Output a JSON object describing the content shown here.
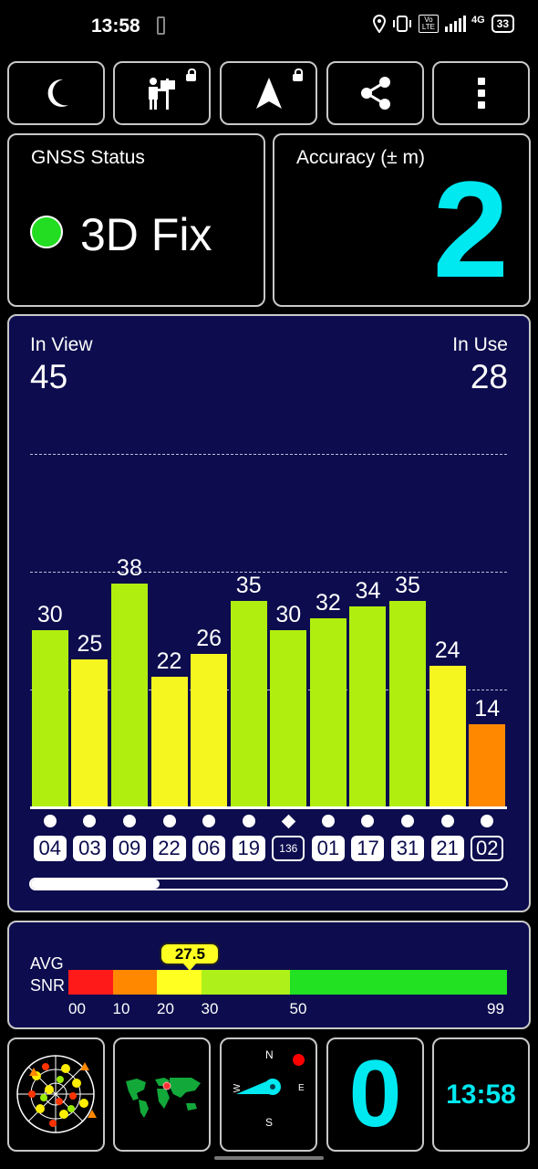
{
  "status_bar": {
    "time": "13:58",
    "icons": [
      "location-icon",
      "vibrate-icon",
      "volte-icon",
      "signal-icon",
      "4g-icon"
    ],
    "volte_label": "Vo LTE",
    "network_label": "4G",
    "battery_level": "33"
  },
  "toolbar": {
    "buttons": [
      "moon-icon",
      "sign-person-icon",
      "navigation-arrow-icon",
      "share-icon",
      "more-vert-icon"
    ]
  },
  "gnss_status": {
    "title": "GNSS Status",
    "value": "3D Fix",
    "indicator_color": "#22dd22"
  },
  "accuracy": {
    "title": "Accuracy (± m)",
    "value": "2",
    "value_color": "#00e8f0"
  },
  "satellites": {
    "in_view_label": "In View",
    "in_view": "45",
    "in_use_label": "In Use",
    "in_use": "28"
  },
  "chart_data": {
    "type": "bar",
    "categories": [
      "04",
      "03",
      "09",
      "22",
      "06",
      "19",
      "136",
      "01",
      "17",
      "31",
      "21",
      "02"
    ],
    "values": [
      30,
      25,
      38,
      22,
      26,
      35,
      30,
      32,
      34,
      35,
      24,
      14
    ],
    "value_labels": [
      "30",
      "25",
      "38",
      "22",
      "26",
      "35",
      "30",
      "32",
      "34",
      "35",
      "24",
      "14"
    ],
    "colors": [
      "#b0ee10",
      "#f5f520",
      "#b0ee10",
      "#f5f520",
      "#f5f520",
      "#b0ee10",
      "#b0ee10",
      "#b0ee10",
      "#b0ee10",
      "#b0ee10",
      "#f5f520",
      "#ff8800"
    ],
    "markers": [
      "dot",
      "dot",
      "dot",
      "dot",
      "dot",
      "dot",
      "diamond",
      "dot",
      "dot",
      "dot",
      "dot",
      "dot"
    ],
    "label_style": [
      "filled",
      "filled",
      "filled",
      "filled",
      "filled",
      "filled",
      "outline",
      "filled",
      "filled",
      "filled",
      "filled",
      "outline"
    ],
    "ylim": [
      0,
      60
    ],
    "grid": true
  },
  "scroll": {
    "position": 0.27
  },
  "avg_snr": {
    "label_line1": "AVG",
    "label_line2": "SNR",
    "value": "27.5",
    "value_numeric": 27.5,
    "scale_ticks": [
      "00",
      "10",
      "20",
      "30",
      "50",
      "99"
    ],
    "tick_values": [
      0,
      10,
      20,
      30,
      50,
      99
    ],
    "segments": [
      {
        "from": 0,
        "to": 10,
        "color": "#ff1a1a"
      },
      {
        "from": 10,
        "to": 20,
        "color": "#ff8800"
      },
      {
        "from": 20,
        "to": 30,
        "color": "#ffff22"
      },
      {
        "from": 30,
        "to": 50,
        "color": "#aef01a"
      },
      {
        "from": 50,
        "to": 99,
        "color": "#22e022"
      }
    ]
  },
  "bottom_tiles": {
    "sky_plot": "sky-plot-icon",
    "world_map": "world-map-icon",
    "compass": {
      "n": "N",
      "e": "E",
      "s": "S",
      "w": "W"
    },
    "speed": "0",
    "clock": "13:58",
    "accent": "#00e8f0"
  }
}
